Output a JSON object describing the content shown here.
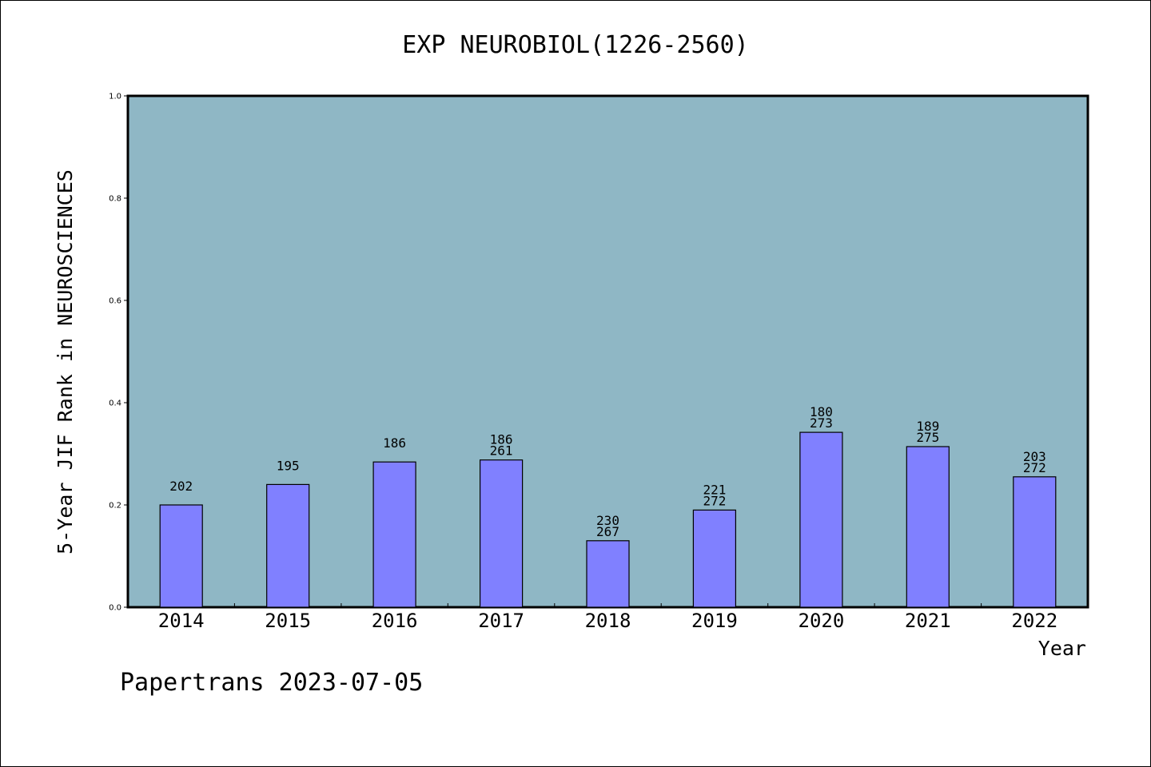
{
  "chart_data": {
    "type": "bar",
    "title": "EXP NEUROBIOL(1226-2560)",
    "xlabel": "Year",
    "ylabel": "5-Year JIF Rank in NEUROSCIENCES",
    "ylim": [
      0,
      1.0
    ],
    "yticks": [
      "0.0",
      "0.2",
      "0.4",
      "0.6",
      "0.8",
      "1.0"
    ],
    "categories": [
      "2014",
      "2015",
      "2016",
      "2017",
      "2018",
      "2019",
      "2020",
      "2021",
      "2022"
    ],
    "values": [
      0.2,
      0.24,
      0.284,
      0.288,
      0.13,
      0.19,
      0.342,
      0.314,
      0.255
    ],
    "labels": [
      [
        "202"
      ],
      [
        "195"
      ],
      [
        "186"
      ],
      [
        "186",
        "261"
      ],
      [
        "230",
        "267"
      ],
      [
        "221",
        "272"
      ],
      [
        "180",
        "273"
      ],
      [
        "189",
        "275"
      ],
      [
        "203",
        "272"
      ]
    ],
    "colors": {
      "plot_background": "#8fb7c5",
      "bar_fill": "#8080ff",
      "bar_stroke": "#000000"
    },
    "grid": false
  },
  "footer": "Papertrans 2023-07-05"
}
